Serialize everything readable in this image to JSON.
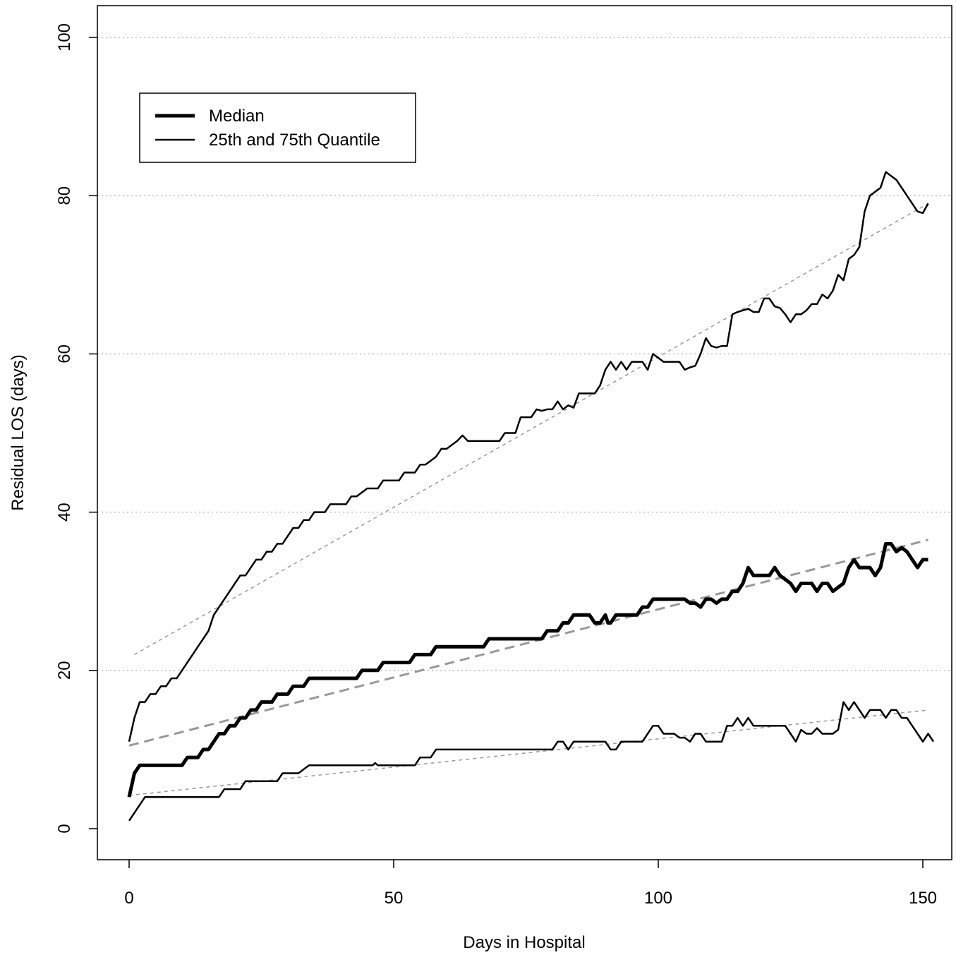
{
  "chart_data": {
    "type": "line",
    "title": "",
    "xlabel": "Days in Hospital",
    "ylabel": "Residual LOS (days)",
    "xlim": [
      0,
      150
    ],
    "ylim": [
      0,
      100
    ],
    "xticks": [
      0,
      50,
      100,
      150
    ],
    "yticks": [
      0,
      20,
      40,
      60,
      80,
      100
    ],
    "grid": "horizontal dotted",
    "legend": {
      "placement": "top-left",
      "entries": [
        "Median",
        "25th and 75th Quantile"
      ]
    },
    "series": [
      {
        "name": "Median",
        "role": "median",
        "color": "#000000",
        "points": [
          [
            0,
            4
          ],
          [
            1,
            7
          ],
          [
            2,
            8
          ],
          [
            10,
            8
          ],
          [
            11,
            9
          ],
          [
            13,
            9
          ],
          [
            14,
            10
          ],
          [
            15,
            10
          ],
          [
            17,
            12
          ],
          [
            18,
            12
          ],
          [
            19,
            13
          ],
          [
            20,
            13
          ],
          [
            21,
            14
          ],
          [
            22,
            14
          ],
          [
            23,
            15
          ],
          [
            24,
            15
          ],
          [
            25,
            16
          ],
          [
            27,
            16
          ],
          [
            28,
            17
          ],
          [
            30,
            17
          ],
          [
            31,
            18
          ],
          [
            33,
            18
          ],
          [
            34,
            19
          ],
          [
            43,
            19
          ],
          [
            44,
            20
          ],
          [
            47,
            20
          ],
          [
            48,
            21
          ],
          [
            53,
            21
          ],
          [
            54,
            22
          ],
          [
            57,
            22
          ],
          [
            58,
            23
          ],
          [
            67,
            23
          ],
          [
            68,
            24
          ],
          [
            78,
            24
          ],
          [
            79,
            25
          ],
          [
            81,
            25
          ],
          [
            82,
            26
          ],
          [
            83,
            26
          ],
          [
            84,
            27
          ],
          [
            87,
            27
          ],
          [
            88,
            26
          ],
          [
            89,
            26
          ],
          [
            90,
            27
          ],
          [
            90.5,
            26
          ],
          [
            91,
            26
          ],
          [
            92,
            27
          ],
          [
            96,
            27
          ],
          [
            97,
            28
          ],
          [
            98,
            28
          ],
          [
            99,
            29
          ],
          [
            105,
            29
          ],
          [
            106,
            28.5
          ],
          [
            107,
            28.5
          ],
          [
            108,
            28
          ],
          [
            109,
            29
          ],
          [
            110,
            29
          ],
          [
            111,
            28.5
          ],
          [
            112,
            29
          ],
          [
            113,
            29
          ],
          [
            114,
            30
          ],
          [
            115,
            30
          ],
          [
            116,
            31
          ],
          [
            117,
            33
          ],
          [
            118,
            32
          ],
          [
            121,
            32
          ],
          [
            122,
            33
          ],
          [
            123,
            32
          ],
          [
            125,
            31
          ],
          [
            126,
            30
          ],
          [
            127,
            31
          ],
          [
            129,
            31
          ],
          [
            130,
            30
          ],
          [
            131,
            31
          ],
          [
            132,
            31
          ],
          [
            133,
            30
          ],
          [
            134,
            30.5
          ],
          [
            135,
            31
          ],
          [
            136,
            33
          ],
          [
            137,
            34
          ],
          [
            138,
            33
          ],
          [
            140,
            33
          ],
          [
            141,
            32
          ],
          [
            142,
            33
          ],
          [
            143,
            36
          ],
          [
            144,
            36
          ],
          [
            145,
            35
          ],
          [
            146,
            35.5
          ],
          [
            147,
            35
          ],
          [
            148,
            34
          ],
          [
            149,
            33
          ],
          [
            150,
            34
          ],
          [
            151,
            34
          ]
        ]
      },
      {
        "name": "25th and 75th Quantile",
        "role": "q75",
        "color": "#000000",
        "points": [
          [
            0,
            11
          ],
          [
            1,
            14
          ],
          [
            2,
            16
          ],
          [
            3,
            16
          ],
          [
            4,
            17
          ],
          [
            5,
            17
          ],
          [
            6,
            18
          ],
          [
            7,
            18
          ],
          [
            8,
            19
          ],
          [
            9,
            19
          ],
          [
            10,
            20
          ],
          [
            11,
            21
          ],
          [
            12,
            22
          ],
          [
            13,
            23
          ],
          [
            14,
            24
          ],
          [
            15,
            25
          ],
          [
            16,
            27
          ],
          [
            17,
            28
          ],
          [
            18,
            29
          ],
          [
            19,
            30
          ],
          [
            20,
            31
          ],
          [
            21,
            32
          ],
          [
            22,
            32
          ],
          [
            23,
            33
          ],
          [
            24,
            34
          ],
          [
            25,
            34
          ],
          [
            26,
            35
          ],
          [
            27,
            35
          ],
          [
            28,
            36
          ],
          [
            29,
            36
          ],
          [
            30,
            37
          ],
          [
            31,
            38
          ],
          [
            32,
            38
          ],
          [
            33,
            39
          ],
          [
            34,
            39
          ],
          [
            35,
            40
          ],
          [
            37,
            40
          ],
          [
            38,
            41
          ],
          [
            41,
            41
          ],
          [
            42,
            42
          ],
          [
            43,
            42
          ],
          [
            45,
            43
          ],
          [
            47,
            43
          ],
          [
            48,
            44
          ],
          [
            51,
            44
          ],
          [
            52,
            45
          ],
          [
            54,
            45
          ],
          [
            55,
            46
          ],
          [
            56,
            46
          ],
          [
            57,
            46.5
          ],
          [
            58,
            47
          ],
          [
            59,
            48
          ],
          [
            60,
            48
          ],
          [
            61,
            48.5
          ],
          [
            62,
            49
          ],
          [
            63,
            49.7
          ],
          [
            64,
            49
          ],
          [
            70,
            49
          ],
          [
            71,
            50
          ],
          [
            73,
            50
          ],
          [
            74,
            52
          ],
          [
            76,
            52
          ],
          [
            77,
            53
          ],
          [
            78,
            52.8
          ],
          [
            79,
            53
          ],
          [
            80,
            53
          ],
          [
            81,
            54
          ],
          [
            82,
            53
          ],
          [
            83,
            53.5
          ],
          [
            84,
            53.2
          ],
          [
            85,
            55
          ],
          [
            88,
            55
          ],
          [
            89,
            56
          ],
          [
            90,
            58
          ],
          [
            91,
            59
          ],
          [
            92,
            58
          ],
          [
            93,
            59
          ],
          [
            94,
            58
          ],
          [
            95,
            59
          ],
          [
            97,
            59
          ],
          [
            98,
            58
          ],
          [
            99,
            60
          ],
          [
            100,
            59.5
          ],
          [
            101,
            59
          ],
          [
            104,
            59
          ],
          [
            105,
            58
          ],
          [
            106,
            58.3
          ],
          [
            107,
            58.5
          ],
          [
            108,
            60
          ],
          [
            109,
            62
          ],
          [
            110,
            61
          ],
          [
            111,
            60.8
          ],
          [
            112,
            61
          ],
          [
            113,
            61
          ],
          [
            114,
            65
          ],
          [
            115,
            65.3
          ],
          [
            116,
            65.5
          ],
          [
            117,
            65.7
          ],
          [
            118,
            65.3
          ],
          [
            119,
            65.3
          ],
          [
            120,
            67
          ],
          [
            121,
            67
          ],
          [
            122,
            66
          ],
          [
            123,
            65.8
          ],
          [
            124,
            65
          ],
          [
            125,
            64
          ],
          [
            126,
            65
          ],
          [
            127,
            65
          ],
          [
            128,
            65.5
          ],
          [
            129,
            66.3
          ],
          [
            130,
            66.3
          ],
          [
            131,
            67.5
          ],
          [
            132,
            67
          ],
          [
            133,
            68
          ],
          [
            134,
            70
          ],
          [
            135,
            69.3
          ],
          [
            136,
            72
          ],
          [
            137,
            72.5
          ],
          [
            138,
            73.5
          ],
          [
            139,
            78
          ],
          [
            140,
            80
          ],
          [
            141,
            80.5
          ],
          [
            142,
            81
          ],
          [
            143,
            83
          ],
          [
            144,
            82.5
          ],
          [
            145,
            82
          ],
          [
            146,
            81
          ],
          [
            147,
            80
          ],
          [
            148,
            79
          ],
          [
            149,
            78
          ],
          [
            150,
            77.8
          ],
          [
            151,
            79
          ]
        ]
      },
      {
        "name": "25th and 75th Quantile",
        "role": "q25",
        "color": "#000000",
        "points": [
          [
            0,
            1
          ],
          [
            3,
            4
          ],
          [
            17,
            4
          ],
          [
            18,
            5
          ],
          [
            21,
            5
          ],
          [
            22,
            6
          ],
          [
            28,
            6
          ],
          [
            29,
            7
          ],
          [
            32,
            7
          ],
          [
            34,
            8
          ],
          [
            46,
            8
          ],
          [
            46.5,
            8.3
          ],
          [
            47,
            8
          ],
          [
            54,
            8
          ],
          [
            55,
            9
          ],
          [
            57,
            9
          ],
          [
            58,
            10
          ],
          [
            80,
            10
          ],
          [
            81,
            11
          ],
          [
            82,
            11
          ],
          [
            83,
            10
          ],
          [
            84,
            11
          ],
          [
            90,
            11
          ],
          [
            91,
            10
          ],
          [
            92,
            10
          ],
          [
            93,
            11
          ],
          [
            97,
            11
          ],
          [
            99,
            13
          ],
          [
            100,
            13
          ],
          [
            101,
            12
          ],
          [
            103,
            12
          ],
          [
            104,
            11.5
          ],
          [
            105,
            11.5
          ],
          [
            106,
            11
          ],
          [
            107,
            12
          ],
          [
            108,
            12
          ],
          [
            109,
            11
          ],
          [
            112,
            11
          ],
          [
            113,
            13
          ],
          [
            114,
            13
          ],
          [
            115,
            14
          ],
          [
            116,
            13
          ],
          [
            117,
            14
          ],
          [
            118,
            13
          ],
          [
            124,
            13
          ],
          [
            125,
            12
          ],
          [
            126,
            11
          ],
          [
            127,
            12.5
          ],
          [
            128,
            12
          ],
          [
            129,
            12
          ],
          [
            130,
            12.7
          ],
          [
            131,
            12
          ],
          [
            133,
            12
          ],
          [
            134,
            12.5
          ],
          [
            135,
            16
          ],
          [
            136,
            15
          ],
          [
            137,
            16
          ],
          [
            139,
            14
          ],
          [
            140,
            15
          ],
          [
            142,
            15
          ],
          [
            143,
            14
          ],
          [
            144,
            15
          ],
          [
            145,
            15
          ],
          [
            146,
            14
          ],
          [
            147,
            14
          ],
          [
            148,
            13
          ],
          [
            149,
            12
          ],
          [
            150,
            11
          ],
          [
            151,
            12
          ],
          [
            152,
            11
          ]
        ]
      }
    ],
    "trend_lines": [
      {
        "of": "median",
        "color": "#999999",
        "points": [
          [
            0,
            10.5
          ],
          [
            151,
            36.5
          ]
        ]
      },
      {
        "of": "q75",
        "color": "#999999",
        "points": [
          [
            1,
            22
          ],
          [
            151,
            79
          ]
        ]
      },
      {
        "of": "q25",
        "color": "#999999",
        "points": [
          [
            0,
            4.2
          ],
          [
            151,
            15
          ]
        ]
      }
    ]
  }
}
